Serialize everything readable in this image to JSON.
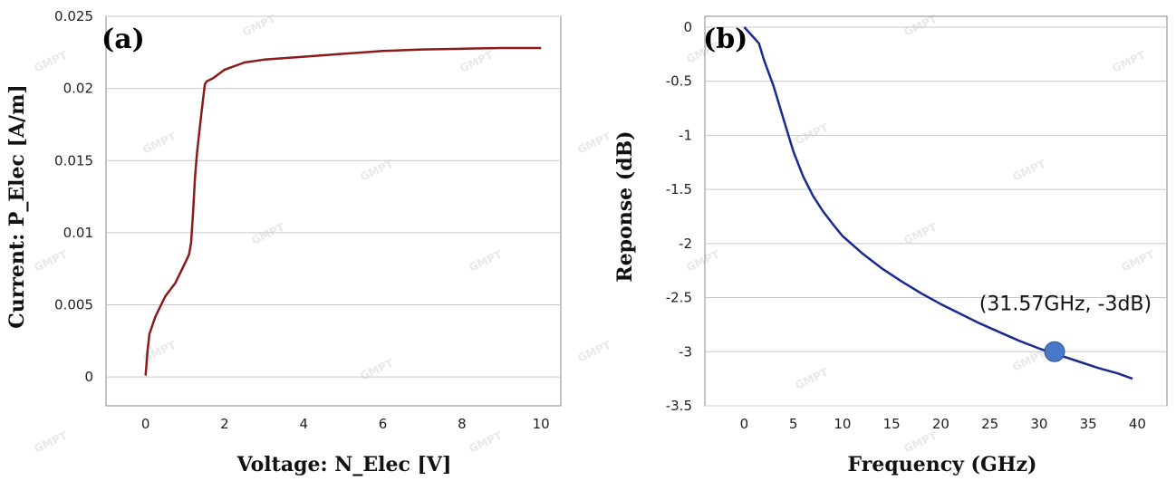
{
  "watermark": "GMPT",
  "chart_data": [
    {
      "type": "line",
      "panel_label": "(a)",
      "xlabel": "Voltage: N_Elec [V]",
      "ylabel": "Current: P_Elec [A/m]",
      "xlim": [
        -1,
        10.5
      ],
      "ylim": [
        -0.002,
        0.025
      ],
      "x_ticks": [
        0,
        2,
        4,
        6,
        8,
        10
      ],
      "y_ticks": [
        0,
        0.005,
        0.01,
        0.015,
        0.02,
        0.025
      ],
      "x_tick_labels": [
        "0",
        "2",
        "4",
        "6",
        "8",
        "10"
      ],
      "y_tick_labels": [
        "0",
        "0.005",
        "0.01",
        "0.015",
        "0.02",
        "0.025"
      ],
      "grid": "horizontal",
      "series_color": "#8b1a1a",
      "series": [
        {
          "x": [
            0,
            0.05,
            0.1,
            0.25,
            0.5,
            0.75,
            1.0,
            1.1,
            1.15,
            1.2,
            1.25,
            1.3,
            1.4,
            1.5,
            1.55,
            1.7,
            2.0,
            2.5,
            3.0,
            4.0,
            5.0,
            6.0,
            7.0,
            8.0,
            9.0,
            10.0
          ],
          "y": [
            0.0001,
            0.0018,
            0.003,
            0.0042,
            0.0056,
            0.0065,
            0.0079,
            0.0085,
            0.0093,
            0.0113,
            0.0138,
            0.0155,
            0.018,
            0.0203,
            0.0205,
            0.0207,
            0.0213,
            0.0218,
            0.022,
            0.0222,
            0.0224,
            0.0226,
            0.0227,
            0.02275,
            0.0228,
            0.0228
          ]
        }
      ]
    },
    {
      "type": "line",
      "panel_label": "(b)",
      "xlabel": "Frequency (GHz)",
      "ylabel": "Reponse (dB)",
      "xlim": [
        -4,
        43
      ],
      "ylim": [
        -3.5,
        0.1
      ],
      "x_ticks": [
        0,
        5,
        10,
        15,
        20,
        25,
        30,
        35,
        40
      ],
      "y_ticks": [
        0,
        -0.5,
        -1,
        -1.5,
        -2,
        -2.5,
        -3,
        -3.5
      ],
      "x_tick_labels": [
        "0",
        "5",
        "10",
        "15",
        "20",
        "25",
        "30",
        "35",
        "40"
      ],
      "y_tick_labels": [
        "0",
        "-0.5",
        "-1",
        "-1.5",
        "-2",
        "-2.5",
        "-3",
        "-3.5"
      ],
      "grid": "horizontal",
      "series_color": "#1a2a8f",
      "marker_color": "#4a78c8",
      "series": [
        {
          "x": [
            0,
            1,
            1.5,
            2,
            3,
            4,
            5,
            6,
            7,
            8,
            9,
            10,
            12,
            14,
            16,
            18,
            20,
            22,
            24,
            26,
            28,
            30,
            32,
            34,
            36,
            38,
            39.5
          ],
          "y": [
            0,
            -0.1,
            -0.15,
            -0.3,
            -0.55,
            -0.85,
            -1.15,
            -1.38,
            -1.56,
            -1.7,
            -1.82,
            -1.93,
            -2.09,
            -2.23,
            -2.35,
            -2.46,
            -2.56,
            -2.65,
            -2.74,
            -2.82,
            -2.9,
            -2.97,
            -3.03,
            -3.09,
            -3.15,
            -3.2,
            -3.25
          ]
        }
      ],
      "marker_point": {
        "x": 31.57,
        "y": -3.0
      },
      "annotation": "(31.57GHz, -3dB)"
    }
  ]
}
